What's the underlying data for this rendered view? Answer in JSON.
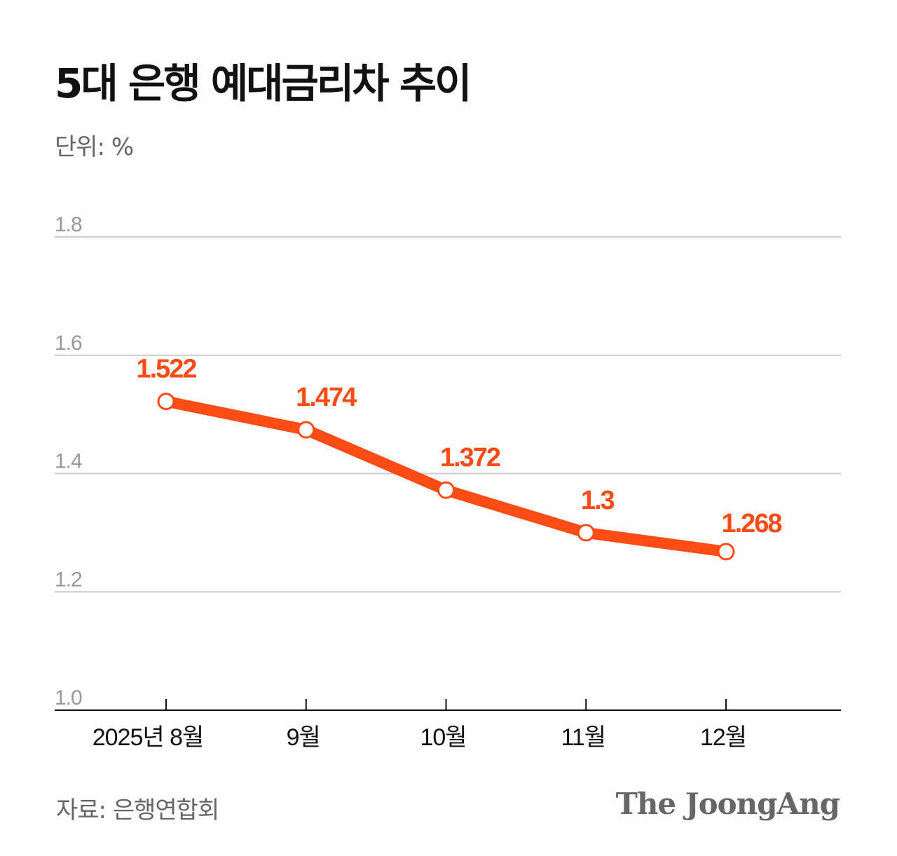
{
  "title": "5대 은행 예대금리차 추이",
  "unit": "단위: %",
  "source": "자료: 은행연합회",
  "logo": "The JoongAng",
  "chart_data": {
    "type": "line",
    "title": "5대 은행 예대금리차 추이",
    "ylabel": "단위: %",
    "categories": [
      "2025년 8월",
      "9월",
      "10월",
      "11월",
      "12월"
    ],
    "values": [
      1.522,
      1.474,
      1.372,
      1.3,
      1.268
    ],
    "data_labels": [
      "1.522",
      "1.474",
      "1.372",
      "1.3",
      "1.268"
    ],
    "yticks": [
      "1.0",
      "1.2",
      "1.4",
      "1.6",
      "1.8"
    ],
    "ylim": [
      1.0,
      1.8
    ],
    "grid": true,
    "colors": {
      "line": "#ff4c14",
      "grid": "#cccccc",
      "axis": "#111111",
      "tick_label": "#999999"
    }
  }
}
